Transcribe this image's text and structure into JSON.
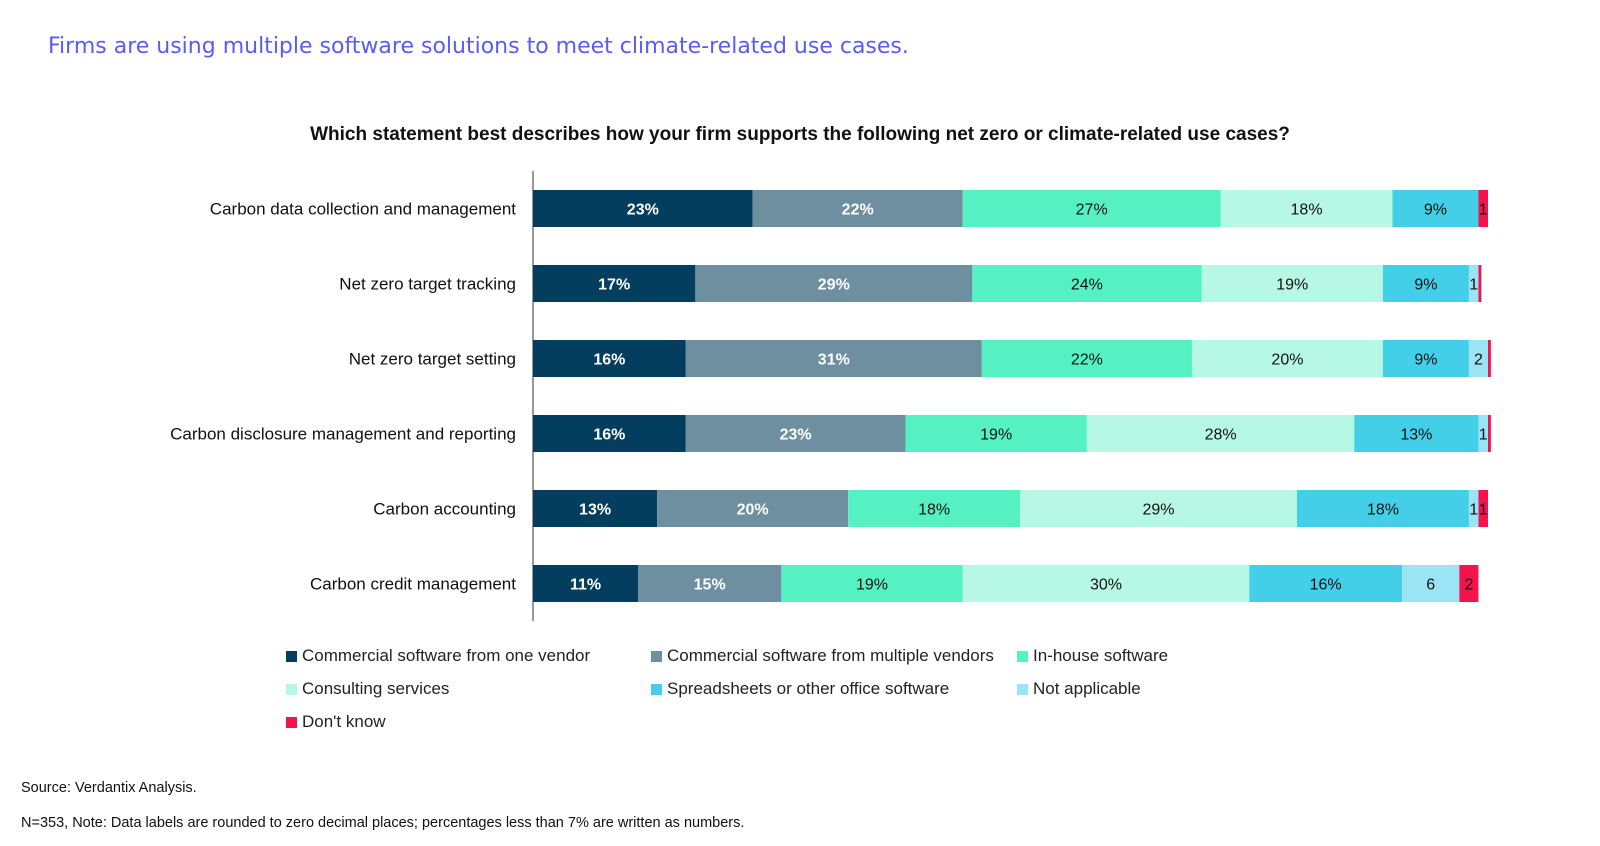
{
  "headline": "Firms are using multiple software solutions to meet climate-related use cases.",
  "footer": {
    "source": "Source: Verdantix Analysis.",
    "note": "N=353, Note: Data labels are rounded to zero decimal places; percentages less than 7% are written as numbers."
  },
  "chart_data": {
    "type": "bar",
    "orientation": "horizontal",
    "stacked": true,
    "title": "Which statement best describes how your firm supports the following net zero or climate-related use cases?",
    "categories": [
      "Carbon data collection and management",
      "Net zero target tracking",
      "Net zero target setting",
      "Carbon disclosure management and reporting",
      "Carbon accounting",
      "Carbon credit management"
    ],
    "series": [
      {
        "name": "Commercial software from one vendor",
        "color": "#033e5e",
        "text_color": "#ffffff",
        "values": [
          23,
          17,
          16,
          16,
          13,
          11
        ],
        "labels": [
          "23%",
          "17%",
          "16%",
          "16%",
          "13%",
          "11%"
        ]
      },
      {
        "name": "Commercial software from multiple vendors",
        "color": "#6d8fa0",
        "text_color": "#ffffff",
        "values": [
          22,
          29,
          31,
          23,
          20,
          15
        ],
        "labels": [
          "22%",
          "29%",
          "31%",
          "23%",
          "20%",
          "15%"
        ]
      },
      {
        "name": "In-house software",
        "color": "#56f1c2",
        "text_color": "#111111",
        "values": [
          27,
          24,
          22,
          19,
          18,
          19
        ],
        "labels": [
          "27%",
          "24%",
          "22%",
          "19%",
          "18%",
          "19%"
        ]
      },
      {
        "name": "Consulting services",
        "color": "#b7f8e5",
        "text_color": "#111111",
        "values": [
          18,
          19,
          20,
          28,
          29,
          30
        ],
        "labels": [
          "18%",
          "19%",
          "20%",
          "28%",
          "29%",
          "30%"
        ]
      },
      {
        "name": "Spreadsheets or other office software",
        "color": "#43cfe7",
        "text_color": "#111111",
        "values": [
          9,
          9,
          9,
          13,
          18,
          16
        ],
        "labels": [
          "9%",
          "9%",
          "9%",
          "13%",
          "18%",
          "16%"
        ]
      },
      {
        "name": "Not applicable",
        "color": "#9ae4f5",
        "text_color": "#111111",
        "values": [
          0,
          1,
          2,
          1,
          1,
          6
        ],
        "labels": [
          "",
          "1",
          "2",
          "1",
          "1",
          "6"
        ]
      },
      {
        "name": "Don't know",
        "color": "#f5134e",
        "text_color": "#111111",
        "values": [
          1,
          0.3,
          0.3,
          0.3,
          1,
          2
        ],
        "labels": [
          "1",
          "",
          "",
          "",
          "1",
          "2"
        ]
      }
    ],
    "xlim": [
      0,
      100
    ],
    "grid": false,
    "legend_position": "bottom"
  }
}
